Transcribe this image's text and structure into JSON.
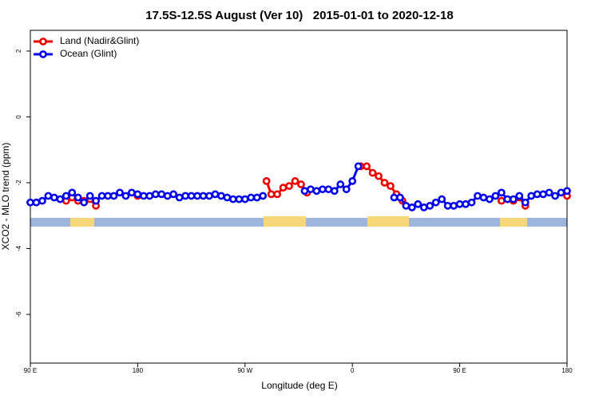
{
  "chart_data": {
    "type": "line",
    "title": "17.5S-12.5S August (Ver 10)   2015-01-01 to 2020-12-18",
    "x_label": "Longitude (deg E)",
    "y_label": "XCO2 - MLO trend (ppm)",
    "xlim": [
      90,
      540
    ],
    "ylim": [
      -7.48,
      2.63
    ],
    "xticks": [
      {
        "value": 90,
        "label": "90 E"
      },
      {
        "value": 180,
        "label": "180"
      },
      {
        "value": 270,
        "label": "90 W"
      },
      {
        "value": 360,
        "label": "0"
      },
      {
        "value": 450,
        "label": "90 E"
      },
      {
        "value": 540,
        "label": "180"
      }
    ],
    "yticks": [
      2,
      0,
      -2,
      -4,
      -6
    ],
    "legend": "top-left",
    "series": [
      {
        "name": "Land (Nadir&Glint)",
        "color": "#ee0000",
        "x": [
          120,
          125,
          130,
          135,
          140,
          145,
          150,
          180,
          200,
          288,
          292,
          297,
          302,
          307,
          312,
          317,
          322,
          340,
          367,
          372,
          377,
          382,
          387,
          392,
          397,
          402,
          440,
          485,
          490,
          495,
          500,
          505,
          520,
          540
        ],
        "values": [
          -2.55,
          -2.45,
          -2.55,
          -2.55,
          -2.5,
          -2.7,
          null,
          -2.4,
          null,
          -1.95,
          -2.35,
          -2.35,
          -2.15,
          -2.1,
          -1.95,
          -2.05,
          -2.3,
          null,
          -1.5,
          -1.5,
          -1.7,
          -1.8,
          -2.0,
          -2.1,
          -2.35,
          -2.55,
          null,
          -2.55,
          -2.5,
          -2.55,
          -2.45,
          -2.7,
          null,
          -2.4
        ]
      },
      {
        "name": "Ocean (Glint)",
        "color": "#0000ee",
        "x": [
          90,
          95,
          100,
          105,
          110,
          115,
          120,
          125,
          130,
          135,
          140,
          145,
          150,
          155,
          160,
          165,
          170,
          175,
          180,
          185,
          190,
          195,
          200,
          205,
          210,
          215,
          220,
          225,
          230,
          235,
          240,
          245,
          250,
          255,
          260,
          265,
          270,
          275,
          280,
          285,
          300,
          320,
          325,
          330,
          335,
          340,
          345,
          350,
          355,
          360,
          365,
          380,
          395,
          400,
          405,
          410,
          415,
          420,
          425,
          430,
          435,
          440,
          445,
          450,
          455,
          460,
          465,
          470,
          475,
          480,
          485,
          490,
          495,
          500,
          505,
          510,
          515,
          520,
          525,
          530,
          535,
          540
        ],
        "values": [
          -2.6,
          -2.6,
          -2.55,
          -2.4,
          -2.45,
          -2.5,
          -2.4,
          -2.3,
          -2.45,
          -2.6,
          -2.4,
          -2.55,
          -2.4,
          -2.4,
          -2.4,
          -2.3,
          -2.4,
          -2.3,
          -2.35,
          -2.4,
          -2.4,
          -2.35,
          -2.35,
          -2.4,
          -2.35,
          -2.45,
          -2.4,
          -2.4,
          -2.4,
          -2.4,
          -2.4,
          -2.35,
          -2.4,
          -2.45,
          -2.5,
          -2.5,
          -2.5,
          -2.45,
          -2.45,
          -2.4,
          null,
          -2.25,
          -2.2,
          -2.25,
          -2.2,
          -2.2,
          -2.25,
          -2.05,
          -2.2,
          -1.95,
          -1.5,
          null,
          -2.45,
          -2.45,
          -2.7,
          -2.75,
          -2.65,
          -2.75,
          -2.7,
          -2.6,
          -2.5,
          -2.7,
          -2.7,
          -2.65,
          -2.65,
          -2.6,
          -2.4,
          -2.45,
          -2.5,
          -2.4,
          -2.3,
          -2.5,
          -2.5,
          -2.4,
          -2.6,
          -2.4,
          -2.35,
          -2.35,
          -2.3,
          -2.4,
          -2.3,
          -2.25
        ]
      }
    ]
  }
}
